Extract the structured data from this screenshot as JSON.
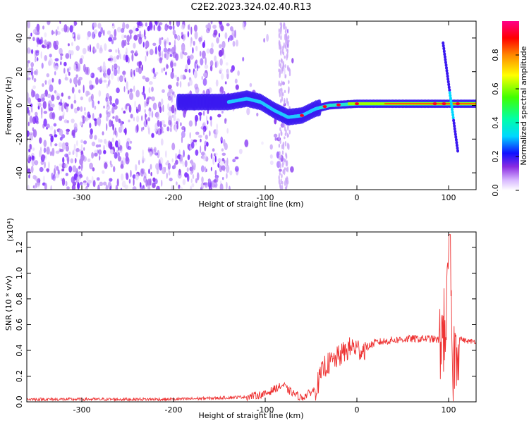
{
  "title": "C2E2.2023.324.02.40.R13",
  "chart_data": [
    {
      "type": "heatmap",
      "xlabel": "Height of straight line (km)",
      "ylabel": "Frequency (Hz)",
      "xlim": [
        -360,
        130
      ],
      "ylim": [
        -50,
        50
      ],
      "xticks": [
        -300,
        -200,
        -100,
        0,
        100
      ],
      "yticks": [
        -40,
        -20,
        0,
        20,
        40
      ],
      "colorbar": {
        "label": "Normalized spectral amplitude",
        "range": [
          0,
          1
        ],
        "ticks": [
          0.0,
          0.2,
          0.4,
          0.6,
          0.8
        ],
        "tick_labels": [
          "0.0",
          "0.2",
          "0.4",
          "0.6",
          "0.8"
        ]
      },
      "ridge": {
        "description": "dominant frequency band",
        "points": [
          {
            "x": -195,
            "y": 2
          },
          {
            "x": -140,
            "y": 2
          },
          {
            "x": -120,
            "y": 4
          },
          {
            "x": -105,
            "y": 2
          },
          {
            "x": -90,
            "y": -3
          },
          {
            "x": -75,
            "y": -7
          },
          {
            "x": -60,
            "y": -6
          },
          {
            "x": -45,
            "y": -2
          },
          {
            "x": -30,
            "y": 0
          },
          {
            "x": 0,
            "y": 1
          },
          {
            "x": 100,
            "y": 1
          },
          {
            "x": 130,
            "y": 1
          }
        ]
      }
    },
    {
      "type": "line",
      "xlabel": "Height of straight line (km)",
      "ylabel": "SNR (10 * v/v)",
      "yscale_label": "(x10⁴)",
      "xlim": [
        -360,
        130
      ],
      "ylim": [
        0,
        1.32
      ],
      "xticks": [
        -300,
        -200,
        -100,
        0,
        100
      ],
      "yticks": [
        0.0,
        0.2,
        0.4,
        0.6,
        0.8,
        1.0,
        1.2
      ],
      "ytick_labels": [
        "0.0",
        "0.2",
        "0.4",
        "0.6",
        "0.8",
        "1.0",
        "1.2"
      ],
      "color": "#ee3333",
      "series": [
        {
          "name": "SNR",
          "x": [
            -360,
            -300,
            -250,
            -200,
            -150,
            -120,
            -100,
            -90,
            -80,
            -75,
            -60,
            -45,
            -35,
            -25,
            -15,
            -5,
            5,
            20,
            40,
            60,
            80,
            90,
            95,
            100,
            105,
            110,
            120,
            130
          ],
          "y": [
            0.02,
            0.02,
            0.02,
            0.02,
            0.03,
            0.04,
            0.06,
            0.1,
            0.13,
            0.09,
            0.03,
            0.1,
            0.28,
            0.32,
            0.38,
            0.43,
            0.4,
            0.46,
            0.48,
            0.49,
            0.49,
            0.48,
            0.55,
            0.85,
            0.3,
            0.5,
            0.47,
            0.47
          ]
        }
      ]
    }
  ]
}
